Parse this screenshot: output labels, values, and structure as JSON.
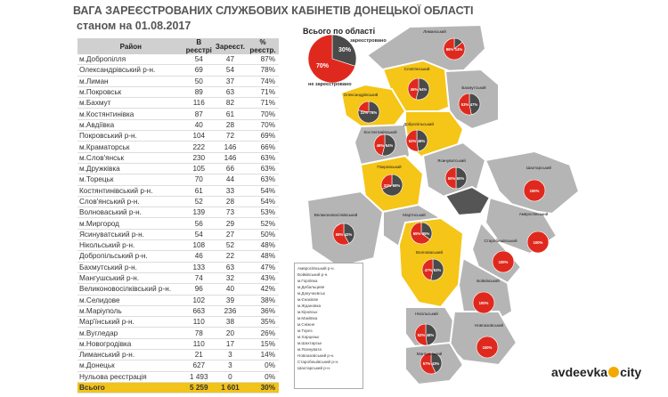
{
  "title": {
    "line1": "ВАГА ЗАРЕЄСТРОВАНИХ СЛУЖБОВИХ КАБІНЕТІВ ДОНЕЦЬКОЇ ОБЛАСТІ",
    "line2": "станом на 01.08.2017"
  },
  "table": {
    "headers": [
      "Район",
      "В реєстрі",
      "Зареєст.",
      "% реєстр."
    ],
    "rows": [
      [
        "м.Добропілля",
        "54",
        "47",
        "87%"
      ],
      [
        "Олександрівський р-н.",
        "69",
        "54",
        "78%"
      ],
      [
        "м.Лиман",
        "50",
        "37",
        "74%"
      ],
      [
        "м.Покровськ",
        "89",
        "63",
        "71%"
      ],
      [
        "м.Бахмут",
        "116",
        "82",
        "71%"
      ],
      [
        "м.Костянтинівка",
        "87",
        "61",
        "70%"
      ],
      [
        "м.Авдіївка",
        "40",
        "28",
        "70%"
      ],
      [
        "Покровський р-н.",
        "104",
        "72",
        "69%"
      ],
      [
        "м.Краматорськ",
        "222",
        "146",
        "66%"
      ],
      [
        "м.Слов'янськ",
        "230",
        "146",
        "63%"
      ],
      [
        "м.Дружківка",
        "105",
        "66",
        "63%"
      ],
      [
        "м.Торецьк",
        "70",
        "44",
        "63%"
      ],
      [
        "Костянтинівський р-н.",
        "61",
        "33",
        "54%"
      ],
      [
        "Слов'янський р-н.",
        "52",
        "28",
        "54%"
      ],
      [
        "Волноваський р-н.",
        "139",
        "73",
        "53%"
      ],
      [
        "м.Миргород",
        "56",
        "29",
        "52%"
      ],
      [
        "Ясинуватський р-н.",
        "54",
        "27",
        "50%"
      ],
      [
        "Нікольський р-н.",
        "108",
        "52",
        "48%"
      ],
      [
        "Добропільський р-н.",
        "46",
        "22",
        "48%"
      ],
      [
        "Бахмутський р-н.",
        "133",
        "63",
        "47%"
      ],
      [
        "Мангушський р-н.",
        "74",
        "32",
        "43%"
      ],
      [
        "Великоновосілківський р-н.",
        "96",
        "40",
        "42%"
      ],
      [
        "м.Селидове",
        "102",
        "39",
        "38%"
      ],
      [
        "м.Маріуполь",
        "663",
        "236",
        "36%"
      ],
      [
        "Мар'їнський р-н.",
        "110",
        "38",
        "35%"
      ],
      [
        "м.Вугледар",
        "78",
        "20",
        "26%"
      ],
      [
        "м.Новогродівка",
        "110",
        "17",
        "15%"
      ],
      [
        "Лиманський р-н.",
        "21",
        "3",
        "14%"
      ],
      [
        "м.Донецьк",
        "627",
        "3",
        "0%"
      ],
      [
        "Нульова реєстрація",
        "1 493",
        "0",
        "0%"
      ]
    ],
    "total": [
      "Всього",
      "5 259",
      "1 601",
      "30%"
    ]
  },
  "note_items": [
    "Амвросіївський р-н.",
    "Бойківський р-н.",
    "м.Горлівка",
    "м.Дебальцеве",
    "м.Докучаєвськ",
    "м.Єнакієве",
    "м.Ждановка",
    "м.Кіровськ",
    "м.Макіївка",
    "м.Сніжне",
    "м.Торез",
    "м.Харцизьк",
    "м.Шахтарськ",
    "м.Ясинувата",
    "Новоазовський р-н.",
    "Старобешівський р-н.",
    "Шахтарський р-н."
  ],
  "chart_data": {
    "type": "pie",
    "title": "Всього по області",
    "series": [
      {
        "name": "зареєстровано",
        "value": 30
      },
      {
        "name": "не зареєстровано",
        "value": 70
      }
    ],
    "colors": {
      "registered": "#4a4a4a",
      "unregistered": "#e0291e",
      "highlight_region": "#f5c518",
      "grey_region": "#b5b5b5",
      "dark_region": "#555555"
    },
    "region_pies": [
      {
        "name": "Лиманський",
        "registered": 14,
        "unregistered": 86
      },
      {
        "name": "Слов'янський",
        "registered": 54,
        "unregistered": 46
      },
      {
        "name": "Олександрівський",
        "registered": 78,
        "unregistered": 22
      },
      {
        "name": "Бахмутський",
        "registered": 47,
        "unregistered": 53
      },
      {
        "name": "Добропільський",
        "registered": 48,
        "unregistered": 52
      },
      {
        "name": "Костянтинівський",
        "registered": 54,
        "unregistered": 46
      },
      {
        "name": "Покровський",
        "registered": 69,
        "unregistered": 31
      },
      {
        "name": "Ясинуватський",
        "registered": 50,
        "unregistered": 50
      },
      {
        "name": "Шахтарський",
        "registered": 0,
        "unregistered": 100
      },
      {
        "name": "Великоновосілківський",
        "registered": 42,
        "unregistered": 58
      },
      {
        "name": "Мар'їнський",
        "registered": 35,
        "unregistered": 65
      },
      {
        "name": "Амвросіївський",
        "registered": 0,
        "unregistered": 100
      },
      {
        "name": "Старобешівський",
        "registered": 0,
        "unregistered": 100
      },
      {
        "name": "Волноваський",
        "registered": 53,
        "unregistered": 47
      },
      {
        "name": "Бойківський",
        "registered": 0,
        "unregistered": 100
      },
      {
        "name": "Нікольський",
        "registered": 48,
        "unregistered": 52
      },
      {
        "name": "Новоазовський",
        "registered": 0,
        "unregistered": 100
      },
      {
        "name": "Мангушський",
        "registered": 43,
        "unregistered": 57
      }
    ]
  },
  "brand": {
    "left": "avdeevka",
    "right": "city"
  }
}
